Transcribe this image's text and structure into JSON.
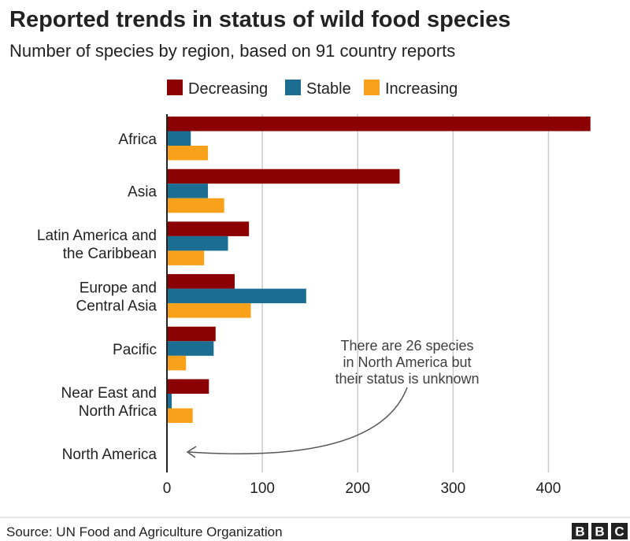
{
  "chart_data": {
    "type": "bar",
    "orientation": "horizontal",
    "title": "Reported trends in status of wild food species",
    "subtitle": "Number of species by region, based on 91 country reports",
    "categories": [
      [
        "Africa"
      ],
      [
        "Asia"
      ],
      [
        "Latin America and",
        "the Caribbean"
      ],
      [
        "Europe and",
        "Central Asia"
      ],
      [
        "Pacific"
      ],
      [
        "Near East and",
        "North Africa"
      ],
      [
        "North America"
      ]
    ],
    "series": [
      {
        "name": "Decreasing",
        "color": "#8b0000",
        "values": [
          444,
          244,
          86,
          71,
          51,
          44,
          0
        ]
      },
      {
        "name": "Stable",
        "color": "#1b6d92",
        "values": [
          25,
          43,
          64,
          146,
          49,
          5,
          0
        ]
      },
      {
        "name": "Increasing",
        "color": "#f9a11b",
        "values": [
          43,
          60,
          39,
          88,
          20,
          27,
          0
        ]
      }
    ],
    "xlim": [
      0,
      450
    ],
    "xticks": [
      0,
      100,
      200,
      300,
      400
    ],
    "grid": true,
    "legend_position": "top",
    "annotation": {
      "lines": [
        "There are 26 species",
        "in North America but",
        "their status is unknown"
      ],
      "target_category": "North America"
    },
    "source": "Source: UN Food and Agriculture Organization",
    "logo": [
      "B",
      "B",
      "C"
    ]
  }
}
